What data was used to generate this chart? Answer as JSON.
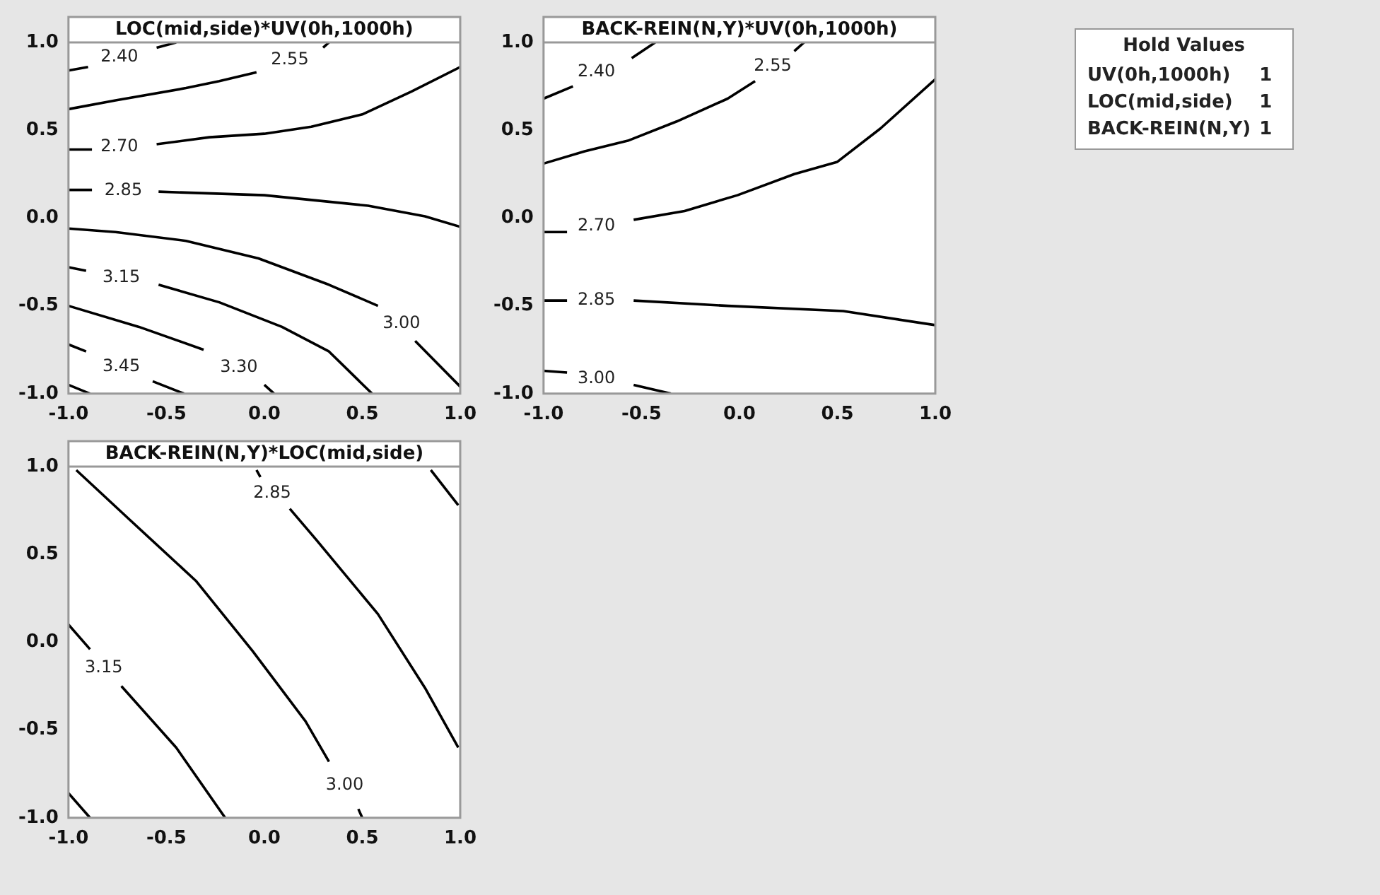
{
  "chart_data": [
    {
      "type": "line",
      "title": "LOC(mid,side)*UV(0h,1000h)",
      "marker": "none",
      "xlim": [
        -1,
        1
      ],
      "ylim": [
        -1,
        1
      ],
      "xticks": [
        {
          "value": -1,
          "label": "-1.0"
        },
        {
          "value": -0.5,
          "label": "-0.5"
        },
        {
          "value": 0,
          "label": "0.0"
        },
        {
          "value": 0.5,
          "label": "0.5"
        },
        {
          "value": 1,
          "label": "1.0"
        }
      ],
      "yticks": [
        {
          "value": -1,
          "label": "-1.0"
        },
        {
          "value": -0.5,
          "label": "-0.5"
        },
        {
          "value": 0,
          "label": "0.0"
        },
        {
          "value": 0.5,
          "label": "0.5"
        },
        {
          "value": 1,
          "label": "1.0"
        }
      ],
      "series": [
        {
          "name": "2.40",
          "color": "#000000",
          "x": [
            -1,
            -0.9,
            -0.74,
            -0.55,
            -0.45
          ],
          "values": [
            0.84,
            0.86,
            null,
            0.97,
            1.0
          ]
        },
        {
          "name": "2.55",
          "color": "#000000",
          "x": [
            -1,
            -0.76,
            -0.4,
            -0.23,
            -0.04,
            0.13,
            0.3,
            0.33
          ],
          "values": [
            0.62,
            0.67,
            0.74,
            0.78,
            0.83,
            null,
            0.97,
            1.0
          ]
        },
        {
          "name": "2.70",
          "color": "#000000",
          "x": [
            -1,
            -0.88,
            -0.74,
            -0.55,
            -0.28,
            0,
            0.24,
            0.5,
            0.75,
            1
          ],
          "values": [
            0.39,
            0.39,
            null,
            0.42,
            0.46,
            0.48,
            0.52,
            0.59,
            0.72,
            0.86
          ]
        },
        {
          "name": "2.85",
          "color": "#000000",
          "x": [
            -1,
            -0.88,
            -0.72,
            -0.54,
            0,
            0.53,
            0.82,
            1
          ],
          "values": [
            0.16,
            0.16,
            null,
            0.15,
            0.13,
            0.07,
            0.01,
            -0.05
          ]
        },
        {
          "name": "3.00",
          "color": "#000000",
          "x": [
            -1,
            -0.76,
            -0.4,
            -0.03,
            0.33,
            0.58,
            0.7,
            0.77,
            1
          ],
          "values": [
            -0.06,
            -0.08,
            -0.13,
            -0.23,
            -0.38,
            -0.5,
            null,
            -0.7,
            -0.96
          ]
        },
        {
          "name": "3.15",
          "color": "#000000",
          "x": [
            -1,
            -0.91,
            -0.73,
            -0.54,
            -0.23,
            0.09,
            0.33,
            0.55
          ],
          "values": [
            -0.28,
            -0.3,
            null,
            -0.38,
            -0.48,
            -0.62,
            -0.76,
            -1.0
          ]
        },
        {
          "name": "3.30",
          "color": "#000000",
          "x": [
            -1,
            -0.64,
            -0.31,
            -0.13,
            0,
            0.05
          ],
          "values": [
            -0.5,
            -0.62,
            -0.75,
            null,
            -0.95,
            -1.0
          ]
        },
        {
          "name": "3.45",
          "color": "#000000",
          "x": [
            -1,
            -0.91,
            -0.73,
            -0.57,
            -0.41
          ],
          "values": [
            -0.72,
            -0.76,
            null,
            -0.93,
            -1.0
          ]
        },
        {
          "color": "#000000",
          "x": [
            -1,
            -0.89
          ],
          "values": [
            -0.95,
            -1.0
          ]
        }
      ]
    },
    {
      "type": "line",
      "title": "BACK-REIN(N,Y)*UV(0h,1000h)",
      "marker": "none",
      "xlim": [
        -1,
        1
      ],
      "ylim": [
        -1,
        1
      ],
      "xticks": [
        {
          "value": -1,
          "label": "-1.0"
        },
        {
          "value": -0.5,
          "label": "-0.5"
        },
        {
          "value": 0,
          "label": "0.0"
        },
        {
          "value": 0.5,
          "label": "0.5"
        },
        {
          "value": 1,
          "label": "1.0"
        }
      ],
      "yticks": [
        {
          "value": -1,
          "label": "-1.0"
        },
        {
          "value": -0.5,
          "label": "-0.5"
        },
        {
          "value": 0,
          "label": "0.0"
        },
        {
          "value": 0.5,
          "label": "0.5"
        },
        {
          "value": 1,
          "label": "1.0"
        }
      ],
      "series": [
        {
          "name": "2.40",
          "color": "#000000",
          "x": [
            -1,
            -0.85,
            -0.73,
            -0.55,
            -0.43
          ],
          "values": [
            0.68,
            0.75,
            null,
            0.91,
            1.0
          ]
        },
        {
          "name": "2.55",
          "color": "#000000",
          "x": [
            -1,
            -0.79,
            -0.57,
            -0.32,
            -0.06,
            0.08,
            0.17,
            0.28,
            0.33
          ],
          "values": [
            0.31,
            0.38,
            0.44,
            0.55,
            0.68,
            0.78,
            null,
            0.95,
            1.0
          ]
        },
        {
          "name": "2.70",
          "color": "#000000",
          "x": [
            -1,
            -0.88,
            -0.73,
            -0.54,
            -0.28,
            -0.01,
            0.28,
            0.5,
            0.72,
            1
          ],
          "values": [
            -0.08,
            -0.08,
            null,
            -0.01,
            0.04,
            0.13,
            0.25,
            0.32,
            0.51,
            0.79
          ]
        },
        {
          "name": "2.85",
          "color": "#000000",
          "x": [
            -1,
            -0.88,
            -0.73,
            -0.54,
            -0.06,
            0.53,
            1
          ],
          "values": [
            -0.47,
            -0.47,
            null,
            -0.47,
            -0.5,
            -0.53,
            -0.61
          ]
        },
        {
          "name": "3.00",
          "color": "#000000",
          "x": [
            -1,
            -0.88,
            -0.73,
            -0.54,
            -0.35
          ],
          "values": [
            -0.87,
            -0.88,
            null,
            -0.95,
            -1.0
          ]
        }
      ]
    },
    {
      "type": "other",
      "title": "Hold Values",
      "categories": [
        "UV(0h,1000h)",
        "LOC(mid,side)",
        "BACK-REIN(N,Y)"
      ],
      "values": [
        1,
        1,
        1
      ],
      "data_labels": true
    },
    {
      "type": "line",
      "title": "BACK-REIN(N,Y)*LOC(mid,side)",
      "marker": "none",
      "xlim": [
        -1,
        1
      ],
      "ylim": [
        -1,
        1
      ],
      "xticks": [
        {
          "value": -1,
          "label": "-1.0"
        },
        {
          "value": -0.5,
          "label": "-0.5"
        },
        {
          "value": 0,
          "label": "0.0"
        },
        {
          "value": 0.5,
          "label": "0.5"
        },
        {
          "value": 1,
          "label": "1.0"
        }
      ],
      "yticks": [
        {
          "value": -1,
          "label": "-1.0"
        },
        {
          "value": -0.5,
          "label": "-0.5"
        },
        {
          "value": 0,
          "label": "0.0"
        },
        {
          "value": 0.5,
          "label": "0.5"
        },
        {
          "value": 1,
          "label": "1.0"
        }
      ],
      "series": [
        {
          "name": "3.00",
          "color": "#000000",
          "x": [
            -0.96,
            -0.69,
            -0.35,
            -0.06,
            0.21,
            0.33,
            0.41,
            0.48,
            0.5
          ],
          "values": [
            0.98,
            0.7,
            0.35,
            -0.05,
            -0.45,
            -0.68,
            null,
            -0.95,
            -1.0
          ]
        },
        {
          "name": "2.85",
          "color": "#000000",
          "x": [
            -0.04,
            -0.02,
            0.04,
            0.13,
            0.26,
            0.58,
            0.82,
            0.99
          ],
          "values": [
            0.98,
            0.94,
            null,
            0.76,
            0.59,
            0.16,
            -0.26,
            -0.6
          ]
        },
        {
          "color": "#000000",
          "x": [
            0.85,
            0.99
          ],
          "values": [
            0.98,
            0.78
          ]
        },
        {
          "name": "3.15",
          "color": "#000000",
          "x": [
            -1,
            -0.89,
            -0.82,
            -0.73,
            -0.45,
            -0.2
          ],
          "values": [
            0.1,
            -0.04,
            null,
            -0.25,
            -0.6,
            -1.0
          ]
        },
        {
          "color": "#000000",
          "x": [
            -1,
            -0.89
          ],
          "values": [
            -0.86,
            -1.0
          ]
        }
      ]
    }
  ]
}
